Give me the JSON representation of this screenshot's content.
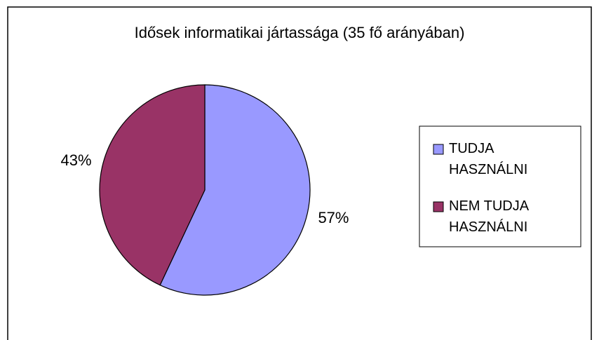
{
  "chart_data": {
    "type": "pie",
    "title": "Idősek informatikai jártassága (35 fő arányában)",
    "categories": [
      "TUDJA HASZNÁLNI",
      "NEM TUDJA HASZNÁLNI"
    ],
    "values": [
      57,
      43
    ],
    "value_labels": [
      "57%",
      "43%"
    ],
    "colors": [
      "#9999ff",
      "#993366"
    ],
    "legend": "right"
  }
}
